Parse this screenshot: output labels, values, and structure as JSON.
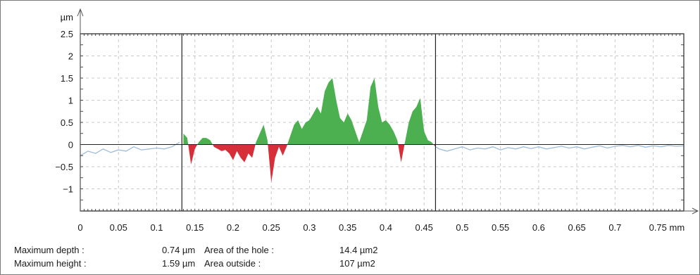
{
  "chart_data": {
    "type": "area",
    "xlabel": "",
    "ylabel": "",
    "x_unit": "mm",
    "y_unit": "µm",
    "xlim": [
      0,
      0.79
    ],
    "ylim": [
      -1.5,
      2.5
    ],
    "x_ticks": [
      0,
      0.05,
      0.1,
      0.15,
      0.2,
      0.25,
      0.3,
      0.35,
      0.4,
      0.45,
      0.5,
      0.55,
      0.6,
      0.65,
      0.7,
      0.75
    ],
    "x_tick_labels": [
      "0",
      "0.05",
      "0.1",
      "0.15",
      "0.2",
      "0.25",
      "0.3",
      "0.35",
      "0.4",
      "0.45",
      "0.5",
      "0.55",
      "0.6",
      "0.65",
      "0.7",
      "0.75 mm"
    ],
    "y_ticks": [
      2.5,
      2,
      1.5,
      1,
      0.5,
      0,
      -0.5,
      -1
    ],
    "y_tick_labels": [
      "2.5",
      "2",
      "1.5",
      "1",
      "0.5",
      "0",
      "−0.5",
      "−1"
    ],
    "y_unit_label": "µm",
    "grid": true,
    "cursors_x": [
      0.133,
      0.465
    ],
    "profile_x": [
      0,
      0.01,
      0.02,
      0.03,
      0.04,
      0.05,
      0.06,
      0.07,
      0.08,
      0.09,
      0.1,
      0.11,
      0.12,
      0.13,
      0.135,
      0.14,
      0.145,
      0.15,
      0.155,
      0.16,
      0.165,
      0.17,
      0.175,
      0.18,
      0.185,
      0.19,
      0.195,
      0.2,
      0.205,
      0.21,
      0.215,
      0.22,
      0.225,
      0.23,
      0.235,
      0.24,
      0.245,
      0.25,
      0.255,
      0.26,
      0.265,
      0.27,
      0.275,
      0.28,
      0.285,
      0.29,
      0.295,
      0.3,
      0.305,
      0.31,
      0.315,
      0.32,
      0.325,
      0.33,
      0.335,
      0.34,
      0.345,
      0.35,
      0.355,
      0.36,
      0.365,
      0.37,
      0.375,
      0.38,
      0.385,
      0.39,
      0.395,
      0.4,
      0.405,
      0.41,
      0.415,
      0.42,
      0.425,
      0.43,
      0.435,
      0.44,
      0.445,
      0.45,
      0.455,
      0.46,
      0.465,
      0.47,
      0.48,
      0.49,
      0.5,
      0.51,
      0.52,
      0.53,
      0.54,
      0.55,
      0.56,
      0.57,
      0.58,
      0.59,
      0.6,
      0.61,
      0.62,
      0.63,
      0.64,
      0.65,
      0.66,
      0.67,
      0.68,
      0.69,
      0.7,
      0.71,
      0.72,
      0.73,
      0.74,
      0.75,
      0.76,
      0.77,
      0.78,
      0.79
    ],
    "profile_y": [
      -0.25,
      -0.15,
      -0.2,
      -0.1,
      -0.18,
      -0.12,
      -0.15,
      -0.05,
      -0.12,
      -0.1,
      -0.08,
      -0.1,
      -0.05,
      0.05,
      0.25,
      0.15,
      -0.45,
      -0.1,
      0.05,
      0.15,
      0.15,
      0.1,
      -0.05,
      -0.1,
      -0.15,
      -0.12,
      -0.2,
      -0.35,
      -0.15,
      -0.3,
      -0.4,
      -0.2,
      -0.3,
      0.05,
      0.25,
      0.45,
      0.1,
      -0.85,
      -0.3,
      -0.05,
      -0.25,
      -0.05,
      0.2,
      0.45,
      0.55,
      0.35,
      0.5,
      0.55,
      0.7,
      0.85,
      0.7,
      1.2,
      1.4,
      1.5,
      1.0,
      0.6,
      0.5,
      0.7,
      0.55,
      0.3,
      0.05,
      0.3,
      0.55,
      1.3,
      1.5,
      0.85,
      0.5,
      0.55,
      0.45,
      0.3,
      0.1,
      -0.4,
      0.05,
      0.5,
      0.75,
      0.85,
      1.05,
      0.3,
      0.1,
      0.05,
      -0.05,
      -0.1,
      -0.15,
      -0.1,
      -0.05,
      -0.12,
      -0.08,
      -0.1,
      -0.05,
      -0.12,
      -0.07,
      -0.1,
      -0.05,
      -0.09,
      -0.05,
      -0.1,
      -0.07,
      -0.04,
      -0.08,
      -0.05,
      -0.1,
      -0.06,
      -0.03,
      -0.08,
      -0.04,
      -0.02,
      -0.05,
      -0.02,
      -0.06,
      -0.03,
      -0.05,
      -0.02,
      -0.04,
      -0.03
    ],
    "colors": {
      "positive_fill": "#4caf50",
      "negative_fill": "#d62f3a",
      "outside_line": "#9fbcd9",
      "cursor": "#222222"
    }
  },
  "stats": {
    "max_depth_label": "Maximum depth :",
    "max_depth_value": "0.74 µm",
    "hole_area_label": "Area of the hole :",
    "hole_area_value": "14.4 µm2",
    "max_height_label": "Maximum height :",
    "max_height_value": "1.59 µm",
    "outside_area_label": "Area outside :",
    "outside_area_value": "107 µm2"
  }
}
